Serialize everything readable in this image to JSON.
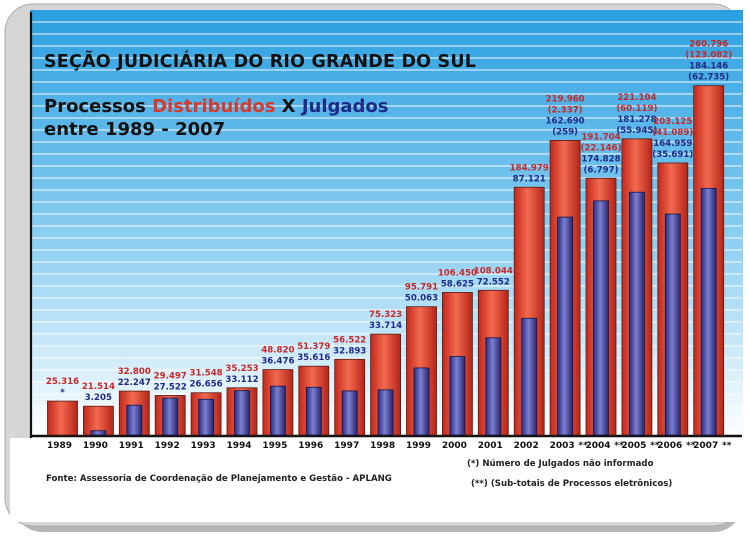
{
  "header": {
    "title": "SEÇÃO JUDICIÁRIA DO RIO GRANDE DO SUL",
    "subtitle_prefix": "Processos ",
    "subtitle_distribuidos": "Distribuídos",
    "subtitle_x": " X ",
    "subtitle_julgados": "Julgados",
    "subtitle_period": "entre 1989 - 2007"
  },
  "footer": {
    "source": "Fonte: Assessoria de Coordenação de Planejamento e Gestão - APLANG",
    "note_star": "(*) Número de Julgados não informado",
    "note_double_star": "(**) (Sub-totais de Processos eletrônicos)"
  },
  "colors": {
    "distributed": "#d8392b",
    "judged": "#3a3c9a",
    "distributed_label": "#c62828",
    "judged_label": "#1f2a86",
    "background_top": "#2a9fe0",
    "background_bottom": "#ffffff"
  },
  "chart_data": {
    "type": "bar",
    "categories": [
      "1989",
      "1990",
      "1991",
      "1992",
      "1993",
      "1994",
      "1995",
      "1996",
      "1997",
      "1998",
      "1999",
      "2000",
      "2001",
      "2002",
      "2003",
      "2004",
      "2005",
      "2006",
      "2007"
    ],
    "category_suffixes": [
      "",
      "",
      "",
      "",
      "",
      "",
      "",
      "",
      "",
      "",
      "",
      "",
      "",
      "",
      "**",
      "**",
      "**",
      "**",
      "**"
    ],
    "series": [
      {
        "key": "distribuidos",
        "values": [
          25316,
          21514,
          32800,
          29497,
          31548,
          35253,
          48820,
          51379,
          56522,
          75323,
          95791,
          106450,
          108044,
          184979,
          219960,
          191704,
          221104,
          203125,
          260796
        ],
        "labels": [
          "25.316",
          "21.514",
          "32.800",
          "29.497",
          "31.548",
          "35.253",
          "48.820",
          "51.379",
          "56.522",
          "75.323",
          "95.791",
          "106.450",
          "108.044",
          "184.979",
          "219.960",
          "191.704",
          "221.104",
          "203.125",
          "260.796"
        ],
        "electronic_labels": [
          "",
          "",
          "",
          "",
          "",
          "",
          "",
          "",
          "",
          "",
          "",
          "",
          "",
          "",
          "(2.337)",
          "(22.146)",
          "(60.119)",
          "(41.089)",
          "(123.082)"
        ]
      },
      {
        "key": "julgados",
        "values": [
          null,
          3205,
          22247,
          27522,
          26656,
          33112,
          36476,
          35616,
          32893,
          33714,
          50063,
          58625,
          72552,
          87121,
          162690,
          174828,
          181278,
          164959,
          184146
        ],
        "labels": [
          "*",
          "3.205",
          "22.247",
          "27.522",
          "26.656",
          "33.112",
          "36.476",
          "35.616",
          "32.893",
          "33.714",
          "50.063",
          "58.625",
          "72.552",
          "87.121",
          "162.690",
          "174.828",
          "181.278",
          "164.959",
          "184.146"
        ],
        "electronic_labels": [
          "",
          "",
          "",
          "",
          "",
          "",
          "",
          "",
          "",
          "",
          "",
          "",
          "",
          "",
          "(259)",
          "(6.797)",
          "(55.945)",
          "(35.691)",
          "(62.735)"
        ]
      }
    ],
    "ylim": [
      0,
      280000
    ],
    "grid": true,
    "legend": "none"
  }
}
